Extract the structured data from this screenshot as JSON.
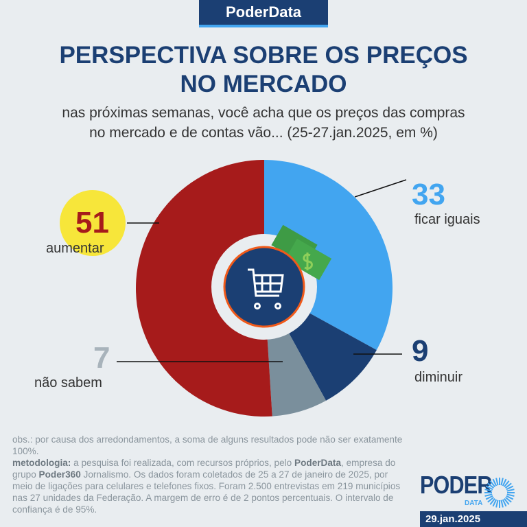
{
  "header": {
    "brand": "PoderData"
  },
  "title": "PERSPECTIVA SOBRE OS PREÇOS\nNO MERCADO",
  "subtitle": "nas próximas semanas, você acha que os preços das compras\nno mercado e de contas vão... (25-27.jan.2025, em %)",
  "chart_data": {
    "type": "pie",
    "categories": [
      "ficar iguais",
      "diminuir",
      "não sabem",
      "aumentar"
    ],
    "values": [
      33,
      9,
      7,
      51
    ],
    "colors": [
      "#42a5f0",
      "#1b3f73",
      "#7a8f9c",
      "#a61b1b"
    ],
    "highlight_color": "#f7e63a",
    "center_icon": "shopping-cart-icon"
  },
  "notes": {
    "obs": "obs.: por causa dos arredondamentos, a soma de alguns resultados pode não ser exatamente 100%.",
    "met_label": "metodologia:",
    "met_1": " a pesquisa foi realizada, com recursos próprios, pelo ",
    "met_b1": "PoderData",
    "met_2": ", empresa do grupo ",
    "met_b2": "Poder360",
    "met_3": " Jornalismo. Os dados foram coletados de 25 a 27 de janeiro de 2025, por meio de ligações para celulares e telefones fixos. Foram 2.500 entrevistas em 219 municípios nas 27 unidades da Federação. A margem de erro é de 2 pontos percentuais. O intervalo de confiança é de 95%."
  },
  "logo": {
    "text": "PODER",
    "sub": "DATA"
  },
  "date": "29.jan.2025"
}
